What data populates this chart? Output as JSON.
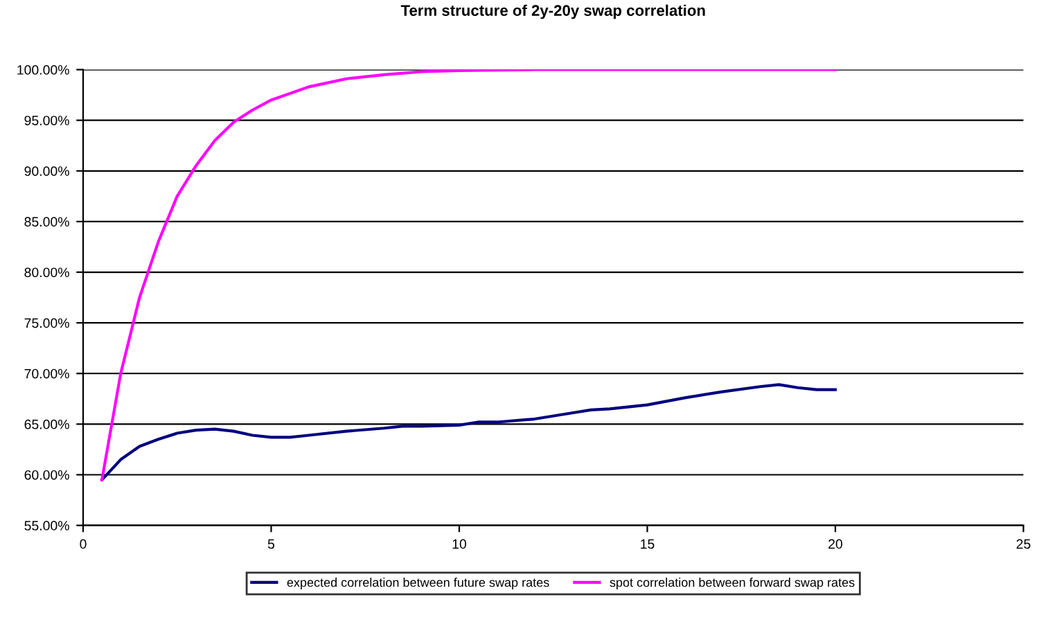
{
  "chart_data": {
    "type": "line",
    "title": "Term structure of 2y-20y swap correlation",
    "xlim": [
      0,
      25
    ],
    "xticks": [
      0,
      5,
      10,
      15,
      20,
      25
    ],
    "ylim": [
      55,
      100
    ],
    "yticks": [
      {
        "value": 55,
        "label": "55.00%"
      },
      {
        "value": 60,
        "label": "60.00%"
      },
      {
        "value": 65,
        "label": "65.00%"
      },
      {
        "value": 70,
        "label": "70.00%"
      },
      {
        "value": 75,
        "label": "75.00%"
      },
      {
        "value": 80,
        "label": "80.00%"
      },
      {
        "value": 85,
        "label": "85.00%"
      },
      {
        "value": 90,
        "label": "90.00%"
      },
      {
        "value": 95,
        "label": "95.00%"
      },
      {
        "value": 100,
        "label": "100.00%"
      }
    ],
    "grid": "y",
    "legend": "bottom",
    "marker": "none",
    "line_style": "solid",
    "series": [
      {
        "name": "expected correlation between future swap rates",
        "color": "#000080",
        "x": [
          0.5,
          1,
          1.5,
          2,
          2.5,
          3,
          3.5,
          4,
          4.5,
          5,
          5.5,
          6,
          7,
          8,
          8.5,
          9,
          10,
          10.5,
          11,
          12,
          13,
          13.5,
          14,
          15,
          16,
          17,
          18,
          18.5,
          19,
          19.5,
          20
        ],
        "values": [
          59.5,
          61.5,
          62.8,
          63.5,
          64.1,
          64.4,
          64.5,
          64.3,
          63.9,
          63.7,
          63.7,
          63.9,
          64.3,
          64.6,
          64.8,
          64.8,
          64.9,
          65.2,
          65.2,
          65.5,
          66.1,
          66.4,
          66.5,
          66.9,
          67.6,
          68.2,
          68.7,
          68.9,
          68.6,
          68.4,
          68.4
        ]
      },
      {
        "name": "spot correlation between forward swap rates",
        "color": "#ff00ff",
        "x": [
          0.5,
          1,
          1.5,
          2,
          2.5,
          3,
          3.5,
          4,
          4.5,
          5,
          6,
          7,
          8,
          9,
          10,
          12,
          15,
          20
        ],
        "values": [
          59.5,
          70,
          77.5,
          83,
          87.5,
          90.5,
          93,
          94.8,
          96,
          97,
          98.3,
          99.1,
          99.5,
          99.8,
          99.9,
          100,
          100,
          100
        ]
      }
    ]
  }
}
